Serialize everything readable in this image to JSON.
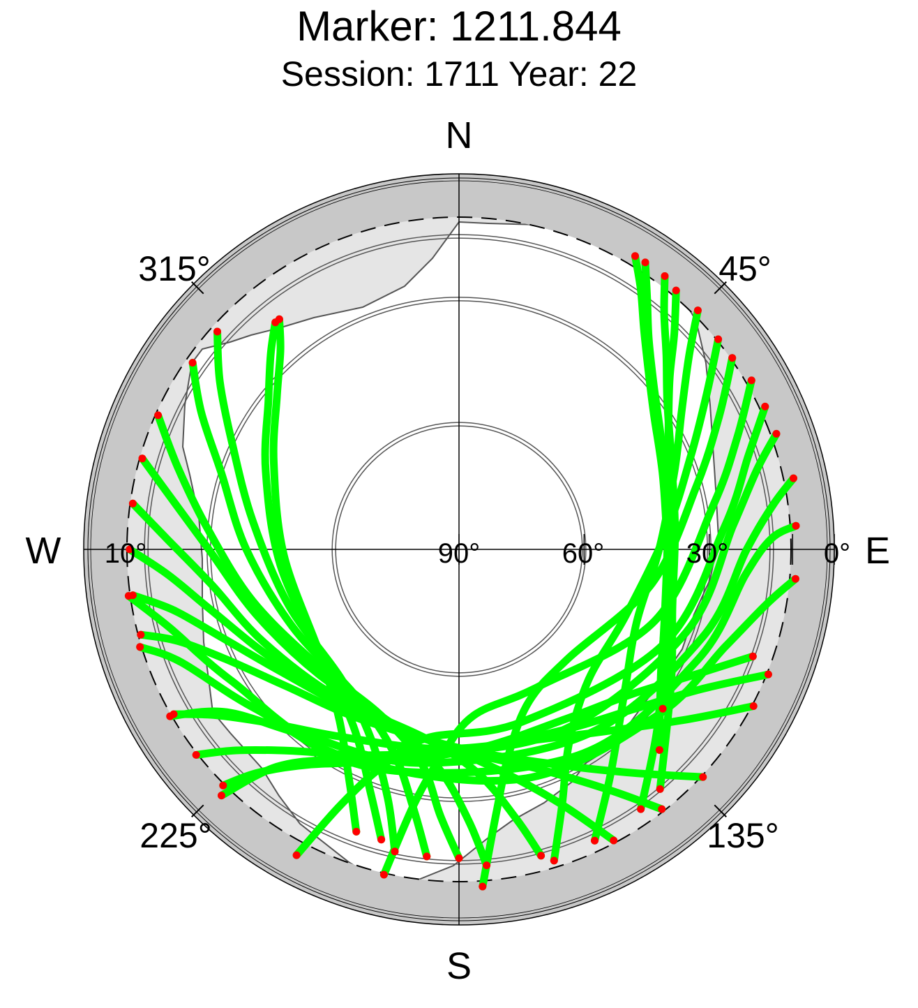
{
  "title": "Marker: 1211.844",
  "subtitle": "Session: 1711 Year: 22",
  "chart_data": {
    "type": "scatter",
    "projection": "polar-skyplot",
    "directions": {
      "north": "N",
      "south": "S",
      "east": "E",
      "west": "W"
    },
    "azimuth_ticks": [
      {
        "az": 45,
        "label": "45°"
      },
      {
        "az": 135,
        "label": "135°"
      },
      {
        "az": 225,
        "label": "225°"
      },
      {
        "az": 315,
        "label": "315°"
      }
    ],
    "elevation_ticks": [
      {
        "el": 90,
        "label": "90°"
      },
      {
        "el": 60,
        "label": "60°"
      },
      {
        "el": 30,
        "label": "30°"
      },
      {
        "el": 0,
        "label": "0°"
      },
      {
        "el": 10,
        "label": "10°",
        "side": "west"
      }
    ],
    "elevation_circles": [
      15,
      30,
      60
    ],
    "cutoff_elevation_deg": 5,
    "mask_band_elevation_deg": [
      0,
      10
    ],
    "colors": {
      "track": "#00ff00",
      "endpoint": "#ff0000",
      "horizon_mask": "#e5e5e5",
      "outer_band": "#c8c8c8",
      "circles": "#555555"
    },
    "tracks": [
      {
        "az": [
          31,
          35,
          40,
          46,
          55,
          70,
          90,
          110,
          128
        ],
        "el": [
          8,
          14,
          21,
          27,
          33,
          38,
          40,
          36,
          28
        ]
      },
      {
        "az": [
          33,
          37,
          42,
          50,
          62,
          80,
          100,
          120,
          135
        ],
        "el": [
          8,
          15,
          22,
          29,
          35,
          39,
          39,
          34,
          22
        ]
      },
      {
        "az": [
          37,
          41,
          47,
          55,
          68,
          85,
          105,
          122,
          140
        ],
        "el": [
          8,
          15,
          22,
          29,
          35,
          38,
          37,
          30,
          15
        ]
      },
      {
        "az": [
          40,
          45,
          51,
          60,
          75,
          95,
          115,
          132,
          145
        ],
        "el": [
          9,
          17,
          25,
          32,
          38,
          40,
          36,
          26,
          14
        ]
      },
      {
        "az": [
          45,
          50,
          58,
          70,
          90,
          112,
          130,
          146,
          155
        ],
        "el": [
          9,
          18,
          27,
          35,
          42,
          44,
          38,
          25,
          13
        ]
      },
      {
        "az": [
          51,
          58,
          68,
          85,
          112,
          135,
          150,
          158,
          163
        ],
        "el": [
          10,
          20,
          30,
          40,
          47,
          46,
          37,
          24,
          12
        ]
      },
      {
        "az": [
          55,
          63,
          75,
          100,
          135,
          155,
          166,
          172,
          176
        ],
        "el": [
          10,
          20,
          31,
          43,
          53,
          50,
          40,
          26,
          9
        ]
      },
      {
        "az": [
          60,
          68,
          80,
          110,
          150,
          175,
          185,
          190,
          193
        ],
        "el": [
          9,
          18,
          28,
          40,
          52,
          50,
          40,
          28,
          10
        ]
      },
      {
        "az": [
          65,
          72,
          85,
          115,
          160,
          190,
          200,
          205,
          208
        ],
        "el": [
          9,
          17,
          26,
          36,
          46,
          44,
          34,
          22,
          7
        ]
      },
      {
        "az": [
          70,
          75,
          85,
          110,
          150,
          190,
          210,
          220,
          224
        ],
        "el": [
          9,
          16,
          24,
          32,
          40,
          40,
          32,
          22,
          8
        ]
      },
      {
        "az": [
          78,
          82,
          90,
          110,
          145,
          190,
          220,
          235,
          240
        ],
        "el": [
          8,
          14,
          21,
          28,
          36,
          38,
          32,
          22,
          10
        ]
      },
      {
        "az": [
          86,
          88,
          95,
          115,
          150,
          200,
          232,
          248,
          253
        ],
        "el": [
          9,
          15,
          21,
          27,
          33,
          34,
          28,
          18,
          10
        ]
      },
      {
        "az": [
          95,
          100,
          110,
          130,
          165,
          210,
          240,
          255,
          262
        ],
        "el": [
          9,
          15,
          22,
          28,
          33,
          33,
          27,
          18,
          10
        ]
      },
      {
        "az": [
          225,
          222,
          215,
          200,
          175,
          148,
          130,
          118,
          110
        ],
        "el": [
          10,
          18,
          27,
          36,
          42,
          42,
          36,
          26,
          15
        ]
      },
      {
        "az": [
          232,
          228,
          220,
          204,
          178,
          150,
          132,
          120,
          112
        ],
        "el": [
          10,
          18,
          27,
          36,
          42,
          40,
          33,
          23,
          10
        ]
      },
      {
        "az": [
          240,
          236,
          228,
          212,
          185,
          155,
          138,
          126,
          118
        ],
        "el": [
          11,
          19,
          28,
          37,
          42,
          40,
          32,
          21,
          10
        ]
      },
      {
        "az": [
          255,
          252,
          245,
          232,
          210,
          178,
          155,
          142,
          133
        ],
        "el": [
          11,
          19,
          28,
          37,
          43,
          42,
          33,
          22,
          10
        ]
      },
      {
        "az": [
          262,
          258,
          250,
          236,
          212,
          180,
          160,
          148,
          142
        ],
        "el": [
          11,
          20,
          29,
          38,
          44,
          42,
          34,
          22,
          11
        ]
      },
      {
        "az": [
          270,
          265,
          256,
          240,
          215,
          185,
          168,
          158,
          152
        ],
        "el": [
          11,
          20,
          29,
          38,
          44,
          43,
          35,
          24,
          11
        ]
      },
      {
        "az": [
          278,
          272,
          262,
          245,
          220,
          190,
          175,
          168,
          165
        ],
        "el": [
          11,
          20,
          30,
          38,
          44,
          44,
          36,
          24,
          14
        ]
      },
      {
        "az": [
          286,
          280,
          270,
          252,
          228,
          200,
          185,
          178,
          175
        ],
        "el": [
          11,
          20,
          30,
          39,
          45,
          45,
          37,
          25,
          14
        ]
      },
      {
        "az": [
          294,
          286,
          274,
          256,
          232,
          205,
          190,
          184,
          180
        ],
        "el": [
          11,
          20,
          30,
          39,
          46,
          46,
          38,
          26,
          16
        ]
      },
      {
        "az": [
          305,
          298,
          288,
          270,
          245,
          215,
          198,
          190,
          186
        ],
        "el": [
          12,
          20,
          30,
          39,
          46,
          47,
          39,
          27,
          16
        ]
      },
      {
        "az": [
          312,
          305,
          295,
          278,
          252,
          222,
          205,
          196,
          192
        ],
        "el": [
          12,
          20,
          30,
          40,
          47,
          48,
          40,
          28,
          16
        ]
      },
      {
        "az": [
          321,
          316,
          308,
          292,
          265,
          230,
          210,
          200,
          195
        ],
        "el": [
          20,
          25,
          32,
          40,
          47,
          48,
          40,
          28,
          18
        ]
      },
      {
        "az": [
          322,
          318,
          310,
          295,
          268,
          232,
          215,
          205,
          200
        ],
        "el": [
          20,
          26,
          33,
          41,
          48,
          48,
          40,
          28,
          18
        ]
      }
    ]
  }
}
